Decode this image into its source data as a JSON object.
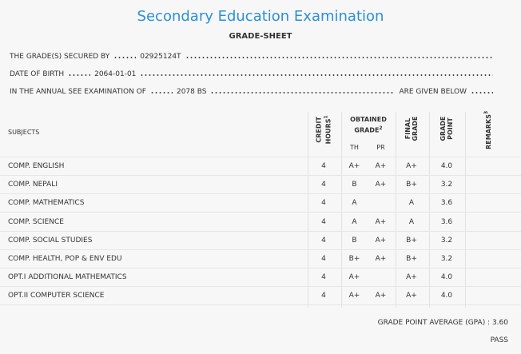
{
  "header": {
    "title": "Secondary Education Examination",
    "subtitle": "GRADE-SHEET"
  },
  "info": [
    {
      "label": "THE GRADE(S) SECURED BY",
      "value": "02925124T"
    },
    {
      "label": "DATE OF BIRTH",
      "value": "2064-01-01"
    },
    {
      "label": "IN THE ANNUAL SEE EXAMINATION OF",
      "value": "2078 BS",
      "suffix": "ARE GIVEN BELOW"
    }
  ],
  "table": {
    "columns": {
      "subjects": "SUBJECTS",
      "credit_hours": {
        "lines": [
          "CREDIT",
          "HOURS"
        ],
        "note": "1"
      },
      "obtained_grade": {
        "lines": [
          "OBTAINED",
          "GRADE"
        ],
        "note": "2"
      },
      "th": "TH",
      "pr": "PR",
      "final_grade": {
        "lines": [
          "FINAL",
          "GRADE"
        ]
      },
      "grade_point": {
        "lines": [
          "GRADE",
          "POINT"
        ]
      },
      "remarks": {
        "lines": [
          "REMARKS"
        ],
        "note": "3"
      }
    },
    "rows": [
      [
        "COMP. ENGLISH",
        4,
        "A+",
        "A+",
        "A+",
        "4.0"
      ],
      [
        "COMP. NEPALI",
        4,
        "B",
        "A+",
        "B+",
        "3.2"
      ],
      [
        "COMP. MATHEMATICS",
        4,
        "A",
        null,
        "A",
        "3.6"
      ],
      [
        "COMP. SCIENCE",
        4,
        "A",
        "A+",
        "A",
        "3.6"
      ],
      [
        "COMP. SOCIAL STUDIES",
        4,
        "B",
        "A+",
        "B+",
        "3.2"
      ],
      [
        "COMP. HEALTH, POP & ENV EDU",
        4,
        "B+",
        "A+",
        "B+",
        "3.2"
      ],
      [
        "OPT.I ADDITIONAL MATHEMATICS",
        4,
        "A+",
        null,
        "A+",
        "4.0"
      ],
      [
        "OPT.II COMPUTER SCIENCE",
        4,
        "A+",
        "A+",
        "A+",
        "4.0"
      ]
    ]
  },
  "footer": {
    "gpa": "GRADE POINT AVERAGE (GPA) : 3.60",
    "result": "PASS"
  }
}
